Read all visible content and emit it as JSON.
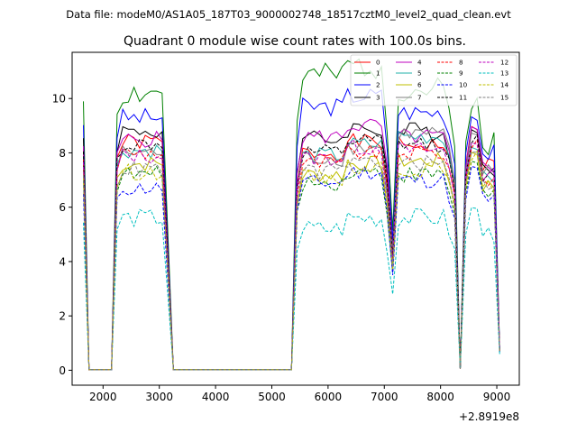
{
  "chart_data": {
    "type": "line",
    "suptitle": "Data file: modeM0/AS1A05_187T03_9000002748_18517cztM0_level2_quad_clean.evt",
    "title": "Quadrant 0 module wise count rates with 100.0s bins.",
    "xlabel": "",
    "ylabel": "",
    "x_offset_label": "+2.8919e8",
    "xlim": [
      1450,
      9400
    ],
    "ylim": [
      -0.55,
      11.7
    ],
    "xticks": [
      2000,
      3000,
      4000,
      5000,
      6000,
      7000,
      8000,
      9000
    ],
    "xtick_labels": [
      "2000",
      "3000",
      "4000",
      "5000",
      "6000",
      "7000",
      "8000",
      "9000"
    ],
    "yticks": [
      0,
      2,
      4,
      6,
      8,
      10
    ],
    "ytick_labels": [
      "0",
      "2",
      "4",
      "6",
      "8",
      "10"
    ],
    "legend_position": "upper right",
    "legend_columns": 4,
    "x": [
      1650,
      1750,
      1850,
      1950,
      2050,
      2150,
      2250,
      2350,
      2450,
      2550,
      2650,
      2750,
      2850,
      2950,
      3050,
      3150,
      3250,
      3350,
      3450,
      3550,
      3650,
      3750,
      3850,
      3950,
      4050,
      4150,
      4250,
      4350,
      4450,
      4550,
      4650,
      4750,
      4850,
      4950,
      5050,
      5150,
      5250,
      5350,
      5450,
      5550,
      5650,
      5750,
      5850,
      5950,
      6050,
      6150,
      6250,
      6350,
      6450,
      6550,
      6650,
      6750,
      6850,
      6950,
      7050,
      7150,
      7250,
      7350,
      7450,
      7550,
      7650,
      7750,
      7850,
      7950,
      8050,
      8150,
      8250,
      8350,
      8450,
      8550,
      8650,
      8750,
      8850,
      8950,
      9050
    ],
    "series": [
      {
        "name": "0",
        "color": "#ff0000",
        "dash": "solid",
        "peaks": {
          "g1": 8.4,
          "g2": 8.0,
          "g3": 8.3,
          "g4": 8.9
        },
        "jitter": 0.3,
        "seed": 1
      },
      {
        "name": "1",
        "color": "#008000",
        "dash": "solid",
        "peaks": {
          "g1": 10.2,
          "g2": 10.8,
          "g3": 10.3,
          "g4": 9.9
        },
        "jitter": 0.5,
        "seed": 2
      },
      {
        "name": "2",
        "color": "#0000ff",
        "dash": "solid",
        "peaks": {
          "g1": 9.3,
          "g2": 9.7,
          "g3": 9.5,
          "g4": 9.4
        },
        "jitter": 0.35,
        "seed": 3
      },
      {
        "name": "3",
        "color": "#000000",
        "dash": "solid",
        "peaks": {
          "g1": 8.8,
          "g2": 8.5,
          "g3": 8.8,
          "g4": 8.8
        },
        "jitter": 0.35,
        "seed": 4
      },
      {
        "name": "4",
        "color": "#bf00bf",
        "dash": "solid",
        "peaks": {
          "g1": 8.5,
          "g2": 8.6,
          "g3": 8.6,
          "g4": 8.8
        },
        "jitter": 0.3,
        "seed": 5
      },
      {
        "name": "5",
        "color": "#20b2aa",
        "dash": "solid",
        "peaks": {
          "g1": 8.1,
          "g2": 7.9,
          "g3": 8.6,
          "g4": 8.3
        },
        "jitter": 0.3,
        "seed": 6
      },
      {
        "name": "6",
        "color": "#bfbf00",
        "dash": "solid",
        "peaks": {
          "g1": 7.6,
          "g2": 7.2,
          "g3": 7.7,
          "g4": 8.0
        },
        "jitter": 0.3,
        "seed": 7
      },
      {
        "name": "7",
        "color": "#808080",
        "dash": "solid",
        "peaks": {
          "g1": 8.0,
          "g2": 7.8,
          "g3": 8.7,
          "g4": 8.6
        },
        "jitter": 0.3,
        "seed": 8
      },
      {
        "name": "8",
        "color": "#ff0000",
        "dash": "dashed",
        "peaks": {
          "g1": 8.0,
          "g2": 7.6,
          "g3": 8.0,
          "g4": 8.3
        },
        "jitter": 0.3,
        "seed": 9
      },
      {
        "name": "9",
        "color": "#008000",
        "dash": "dashed",
        "peaks": {
          "g1": 7.2,
          "g2": 6.9,
          "g3": 7.2,
          "g4": 7.7
        },
        "jitter": 0.3,
        "seed": 10
      },
      {
        "name": "10",
        "color": "#0000ff",
        "dash": "dashed",
        "peaks": {
          "g1": 6.7,
          "g2": 6.9,
          "g3": 7.0,
          "g4": 7.4
        },
        "jitter": 0.3,
        "seed": 11
      },
      {
        "name": "11",
        "color": "#000000",
        "dash": "dashed",
        "peaks": {
          "g1": 8.3,
          "g2": 8.0,
          "g3": 8.3,
          "g4": 8.5
        },
        "jitter": 0.3,
        "seed": 12
      },
      {
        "name": "12",
        "color": "#bf00bf",
        "dash": "dashed",
        "peaks": {
          "g1": 7.9,
          "g2": 7.8,
          "g3": 8.1,
          "g4": 8.4
        },
        "jitter": 0.3,
        "seed": 13
      },
      {
        "name": "13",
        "color": "#00bfbf",
        "dash": "dashed",
        "peaks": {
          "g1": 5.6,
          "g2": 5.2,
          "g3": 5.6,
          "g4": 5.9
        },
        "jitter": 0.35,
        "seed": 14
      },
      {
        "name": "14",
        "color": "#bfbf00",
        "dash": "dashed",
        "peaks": {
          "g1": 7.3,
          "g2": 7.1,
          "g3": 7.4,
          "g4": 7.9
        },
        "jitter": 0.3,
        "seed": 15
      },
      {
        "name": "15",
        "color": "#808080",
        "dash": "dashed",
        "peaks": {
          "g1": 7.4,
          "g2": 7.3,
          "g3": 7.6,
          "g4": 8.1
        },
        "jitter": 0.3,
        "seed": 16
      }
    ]
  }
}
